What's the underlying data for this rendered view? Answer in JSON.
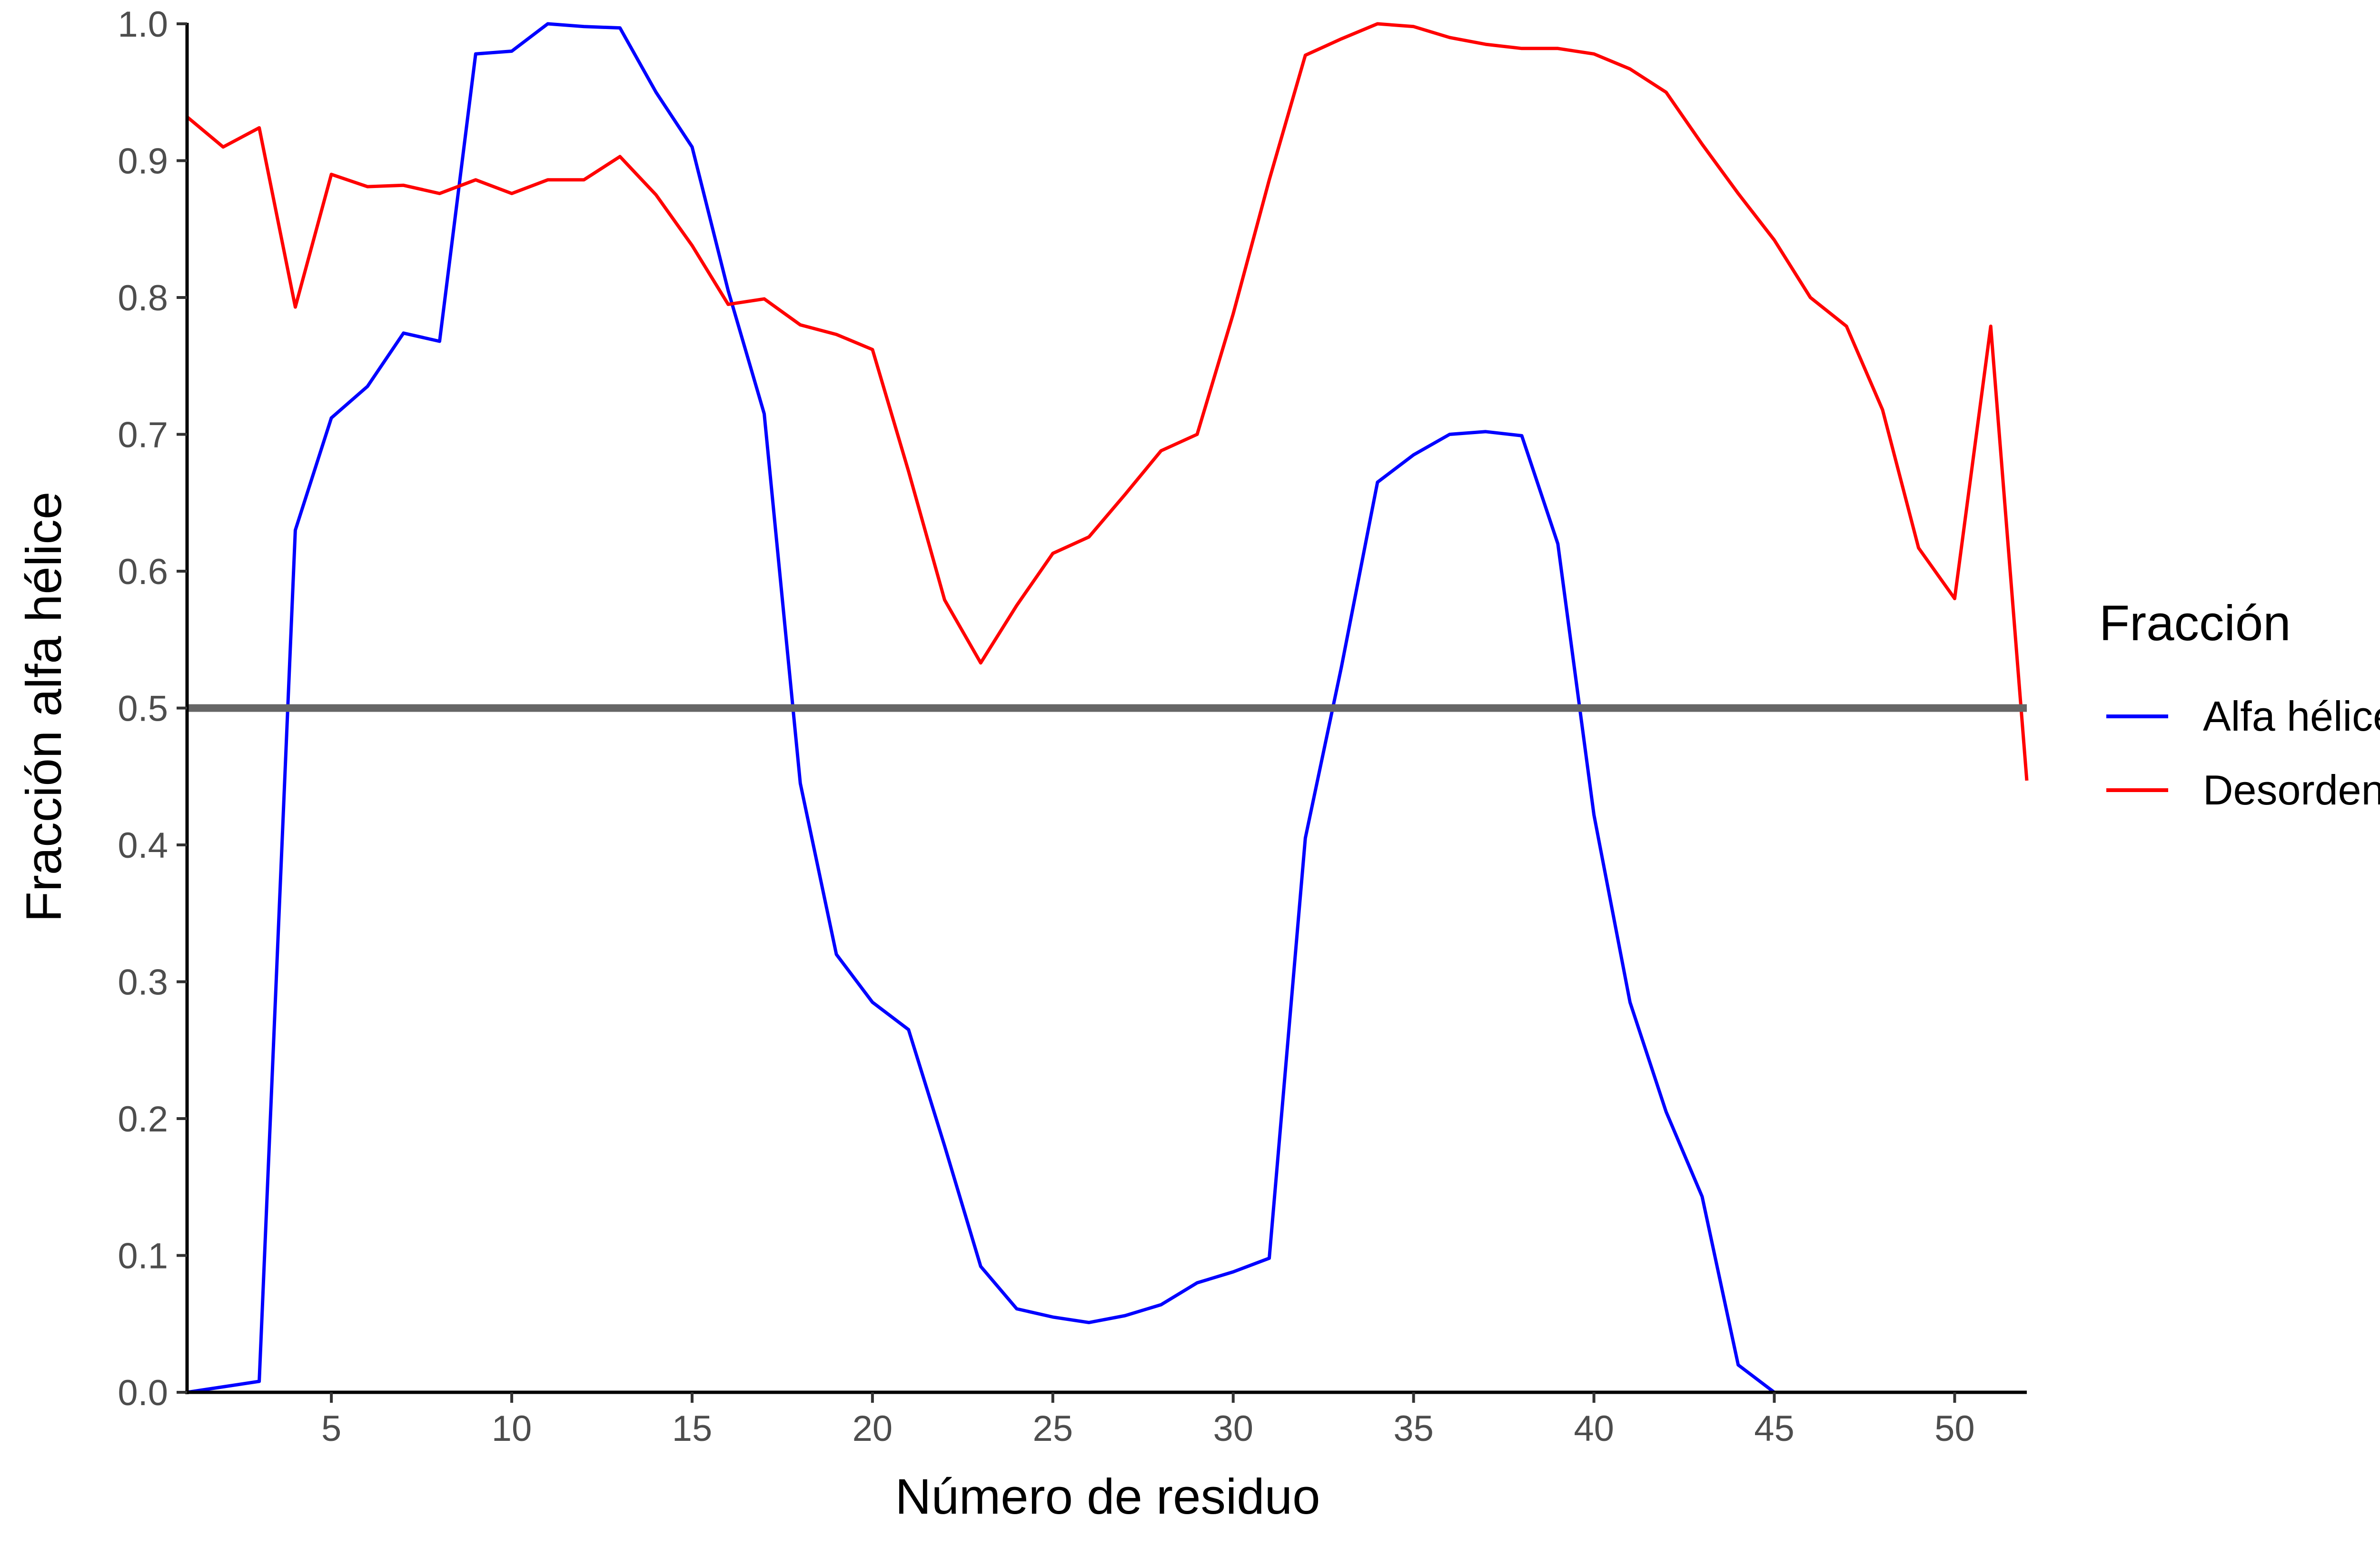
{
  "chart_data": {
    "type": "line",
    "title": "",
    "xlabel": "Número de residuo",
    "ylabel": "Fracción alfa hélice",
    "xlim": [
      1,
      52
    ],
    "ylim": [
      0,
      1
    ],
    "x_ticks": [
      5,
      10,
      15,
      20,
      25,
      30,
      35,
      40,
      45,
      50
    ],
    "x_tick_labels": [
      "5",
      "10",
      "15",
      "20",
      "25",
      "30",
      "35",
      "40",
      "45",
      "50"
    ],
    "y_ticks": [
      0,
      0.1,
      0.2,
      0.3,
      0.4,
      0.5,
      0.6,
      0.7,
      0.8,
      0.9,
      1.0
    ],
    "y_tick_labels": [
      "0.0",
      "0.1",
      "0.2",
      "0.3",
      "0.4",
      "0.5",
      "0.6",
      "0.7",
      "0.8",
      "0.9",
      "1.0"
    ],
    "grid": false,
    "legend": {
      "title": "Fracción",
      "position": "right"
    },
    "reference_line": {
      "y": 0.5,
      "color": "#666666"
    },
    "x": [
      1,
      2,
      3,
      4,
      5,
      6,
      7,
      8,
      9,
      10,
      11,
      12,
      13,
      14,
      15,
      16,
      17,
      18,
      19,
      20,
      21,
      22,
      23,
      24,
      25,
      26,
      27,
      28,
      29,
      30,
      31,
      32,
      33,
      34,
      35,
      36,
      37,
      38,
      39,
      40,
      41,
      42,
      43,
      44,
      45,
      46,
      47,
      48,
      49,
      50,
      51,
      52
    ],
    "series": [
      {
        "name": "Alfa hélice",
        "color": "#0000ff",
        "values": [
          0.0,
          0.004,
          0.008,
          0.63,
          0.712,
          0.735,
          0.774,
          0.768,
          0.978,
          0.98,
          1.0,
          0.998,
          0.997,
          0.95,
          0.91,
          0.805,
          0.715,
          0.445,
          0.32,
          0.285,
          0.265,
          0.18,
          0.092,
          0.061,
          0.055,
          0.051,
          0.056,
          0.064,
          0.08,
          0.088,
          0.098,
          0.405,
          0.53,
          0.665,
          0.685,
          0.7,
          0.702,
          0.699,
          0.62,
          0.422,
          0.285,
          0.205,
          0.143,
          0.02,
          0.0,
          null,
          null,
          null,
          null,
          null,
          null,
          null
        ]
      },
      {
        "name": "Desorden",
        "color": "#ff0000",
        "values": [
          0.932,
          0.91,
          0.924,
          0.793,
          0.89,
          0.881,
          0.882,
          0.876,
          0.886,
          0.876,
          0.886,
          0.886,
          0.903,
          0.875,
          0.838,
          0.795,
          0.799,
          0.78,
          0.773,
          0.762,
          0.673,
          0.579,
          0.533,
          0.575,
          0.613,
          0.625,
          0.656,
          0.688,
          0.7,
          0.788,
          0.886,
          0.977,
          0.989,
          1.0,
          0.998,
          0.99,
          0.985,
          0.982,
          0.982,
          0.978,
          0.967,
          0.95,
          0.912,
          0.876,
          0.842,
          0.8,
          0.779,
          0.718,
          0.617,
          0.58,
          0.779,
          0.447
        ]
      }
    ]
  }
}
